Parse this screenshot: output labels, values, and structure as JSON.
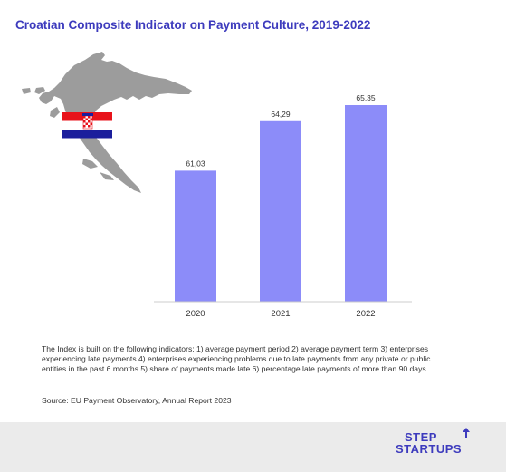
{
  "title": "Croatian Composite Indicator on Payment Culture, 2019-2022",
  "note": "The Index is built on the following indicators: 1) average payment period 2) average payment term 3) enterprises experiencing late payments 4) enterprises experiencing problems due to late payments from any private or public entities in the past 6 months 5) share of payments made late 6) percentage late payments of more than 90 days.",
  "source": "Source: EU Payment Observatory, Annual Report 2023",
  "logo": {
    "line1": "STEP",
    "line2": "STARTUPS"
  },
  "colors": {
    "bar": "#8c8cf9",
    "title": "#3d3bbd",
    "map": "#9c9c9c",
    "flag_red": "#e8131b",
    "flag_blue": "#1b1e9c"
  },
  "chart_data": {
    "type": "bar",
    "categories": [
      "2020",
      "2021",
      "2022"
    ],
    "values": [
      61.03,
      64.29,
      65.35
    ],
    "value_labels": [
      "61,03",
      "64,29",
      "65,35"
    ],
    "title": "Croatian Composite Indicator on Payment Culture, 2019-2022",
    "xlabel": "",
    "ylabel": "",
    "ylim": [
      52.4,
      65.35
    ],
    "grid": false,
    "legend": "none"
  }
}
